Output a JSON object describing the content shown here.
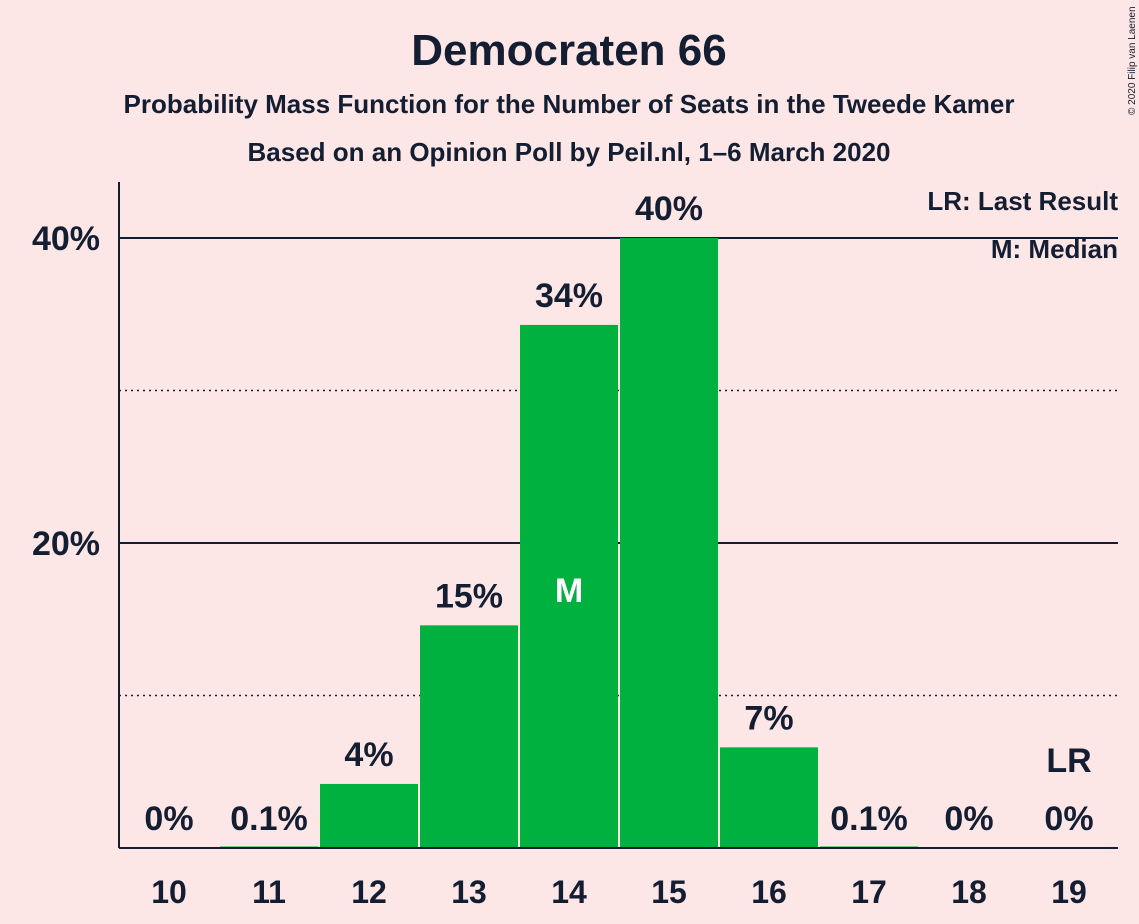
{
  "copyright": "© 2020 Filip van Laenen",
  "chart_data": {
    "type": "bar",
    "title": "Democraten 66",
    "subtitle": "Probability Mass Function for the Number of Seats in the Tweede Kamer",
    "subtitle2": "Based on an Opinion Poll by Peil.nl, 1–6 March 2020",
    "categories": [
      "10",
      "11",
      "12",
      "13",
      "14",
      "15",
      "16",
      "17",
      "18",
      "19"
    ],
    "values": [
      0,
      0.1,
      4.2,
      14.6,
      34.3,
      40.0,
      6.6,
      0.1,
      0,
      0
    ],
    "data_labels": [
      "0%",
      "0.1%",
      "4%",
      "15%",
      "34%",
      "40%",
      "7%",
      "0.1%",
      "0%",
      "0%"
    ],
    "ylim": [
      0,
      43.6
    ],
    "yticks": [
      {
        "value": 20,
        "label": "20%"
      },
      {
        "value": 40,
        "label": "40%"
      }
    ],
    "minor_gridlines": [
      10,
      30
    ],
    "median_index": 4,
    "median_marker": "M",
    "last_result_index": 9,
    "last_result_marker": "LR",
    "legend": [
      "LR: Last Result",
      "M: Median"
    ],
    "legend_position": "top-right",
    "bar_color": "#00b140"
  }
}
